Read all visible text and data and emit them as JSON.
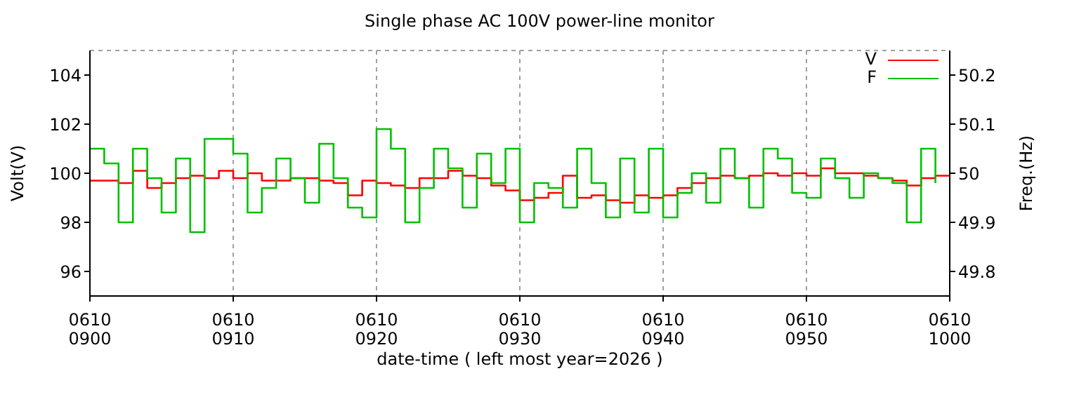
{
  "chart_data": {
    "type": "step",
    "title": "Single phase AC 100V power-line monitor",
    "xlabel": "date-time ( left most year=2026 )",
    "ylabel": "Volt(V)",
    "y2label": "Freq.(Hz)",
    "xlim": [
      "2026-06-10T09:00",
      "2026-06-10T10:00"
    ],
    "xticks": [
      {
        "value": "2026-06-10T09:00",
        "label": "0610\n0900"
      },
      {
        "value": "2026-06-10T09:10",
        "label": "0610\n0910"
      },
      {
        "value": "2026-06-10T09:20",
        "label": "0610\n0920"
      },
      {
        "value": "2026-06-10T09:30",
        "label": "0610\n0930"
      },
      {
        "value": "2026-06-10T09:40",
        "label": "0610\n0940"
      },
      {
        "value": "2026-06-10T09:50",
        "label": "0610\n0950"
      },
      {
        "value": "2026-06-10T10:00",
        "label": "0610\n1000"
      }
    ],
    "x": [
      "2026-06-10T09:00",
      "2026-06-10T09:01",
      "2026-06-10T09:02",
      "2026-06-10T09:03",
      "2026-06-10T09:04",
      "2026-06-10T09:05",
      "2026-06-10T09:06",
      "2026-06-10T09:07",
      "2026-06-10T09:08",
      "2026-06-10T09:09",
      "2026-06-10T09:10",
      "2026-06-10T09:11",
      "2026-06-10T09:12",
      "2026-06-10T09:13",
      "2026-06-10T09:14",
      "2026-06-10T09:15",
      "2026-06-10T09:16",
      "2026-06-10T09:17",
      "2026-06-10T09:18",
      "2026-06-10T09:19",
      "2026-06-10T09:20",
      "2026-06-10T09:21",
      "2026-06-10T09:22",
      "2026-06-10T09:23",
      "2026-06-10T09:24",
      "2026-06-10T09:25",
      "2026-06-10T09:26",
      "2026-06-10T09:27",
      "2026-06-10T09:28",
      "2026-06-10T09:29",
      "2026-06-10T09:30",
      "2026-06-10T09:31",
      "2026-06-10T09:32",
      "2026-06-10T09:33",
      "2026-06-10T09:34",
      "2026-06-10T09:35",
      "2026-06-10T09:36",
      "2026-06-10T09:37",
      "2026-06-10T09:38",
      "2026-06-10T09:39",
      "2026-06-10T09:40",
      "2026-06-10T09:41",
      "2026-06-10T09:42",
      "2026-06-10T09:43",
      "2026-06-10T09:44",
      "2026-06-10T09:45",
      "2026-06-10T09:46",
      "2026-06-10T09:47",
      "2026-06-10T09:48",
      "2026-06-10T09:49",
      "2026-06-10T09:50",
      "2026-06-10T09:51",
      "2026-06-10T09:52",
      "2026-06-10T09:53",
      "2026-06-10T09:54",
      "2026-06-10T09:55",
      "2026-06-10T09:56",
      "2026-06-10T09:57",
      "2026-06-10T09:58",
      "2026-06-10T09:59",
      "2026-06-10T10:00"
    ],
    "ylim": [
      95,
      105
    ],
    "yticks": [
      96,
      98,
      100,
      102,
      104
    ],
    "y2lim": [
      49.75,
      50.25
    ],
    "y2ticks": [
      49.8,
      49.9,
      50,
      50.1,
      50.2
    ],
    "grid": true,
    "legend": "top right",
    "line_style": "solid",
    "marker": "none",
    "series": [
      {
        "name": "V",
        "color": "#ff0000",
        "values": [
          99.7,
          99.7,
          99.6,
          100.1,
          99.4,
          99.6,
          99.8,
          99.9,
          99.8,
          100.1,
          99.8,
          100.0,
          99.7,
          99.7,
          99.8,
          99.8,
          99.7,
          99.6,
          99.1,
          99.7,
          99.6,
          99.5,
          99.4,
          99.8,
          99.8,
          100.1,
          99.9,
          99.8,
          99.5,
          99.3,
          98.9,
          99.0,
          99.2,
          99.9,
          99.0,
          99.1,
          98.9,
          98.8,
          99.1,
          99.0,
          99.1,
          99.4,
          99.6,
          99.8,
          99.9,
          99.8,
          99.9,
          100.0,
          99.9,
          100.0,
          99.9,
          100.2,
          100.0,
          100.0,
          99.9,
          99.8,
          99.7,
          99.5,
          99.8,
          99.9,
          99.9
        ]
      },
      {
        "name": "F",
        "color": "#00c000",
        "axis": "y2",
        "values": [
          50.05,
          50.02,
          49.9,
          50.05,
          49.99,
          49.92,
          50.03,
          49.88,
          50.07,
          50.07,
          50.04,
          49.92,
          49.97,
          50.03,
          49.99,
          49.94,
          50.06,
          49.99,
          49.93,
          49.91,
          50.09,
          50.05,
          49.9,
          49.97,
          50.05,
          50.01,
          49.93,
          50.04,
          49.98,
          50.05,
          49.9,
          49.98,
          49.97,
          49.93,
          50.05,
          49.98,
          49.91,
          50.03,
          49.92,
          50.05,
          49.91,
          49.96,
          50.0,
          49.94,
          50.05,
          49.99,
          49.93,
          50.05,
          50.03,
          49.96,
          49.95,
          50.03,
          49.99,
          49.95,
          50.0,
          49.99,
          49.98,
          49.9,
          50.05,
          49.98,
          null
        ]
      }
    ]
  }
}
